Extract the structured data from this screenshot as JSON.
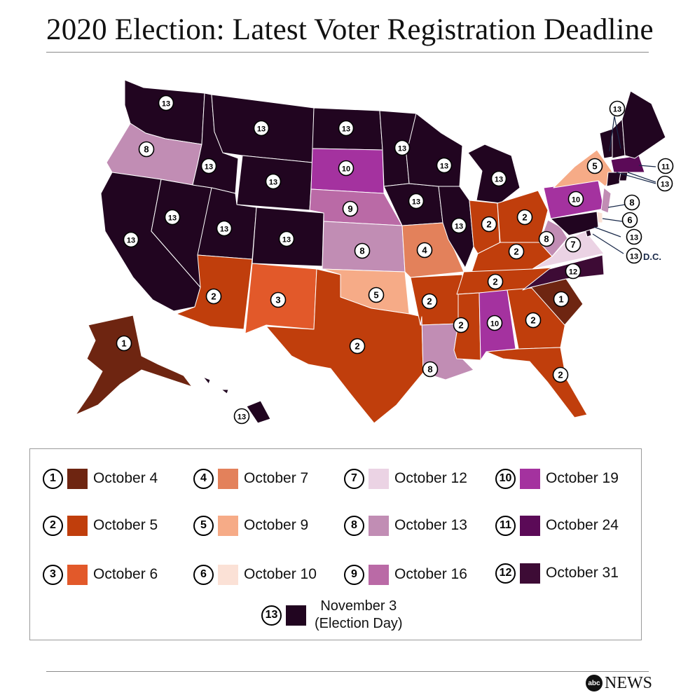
{
  "title": "2020 Election: Latest Voter Registration Deadline",
  "legend": [
    {
      "num": "1",
      "label": "October 4",
      "color": "#6e2511"
    },
    {
      "num": "2",
      "label": "October 5",
      "color": "#c03e0c"
    },
    {
      "num": "3",
      "label": "October 6",
      "color": "#e2592a"
    },
    {
      "num": "4",
      "label": "October 7",
      "color": "#e3815b"
    },
    {
      "num": "5",
      "label": "October 9",
      "color": "#f6ab87"
    },
    {
      "num": "6",
      "label": "October 10",
      "color": "#fbe1d6"
    },
    {
      "num": "7",
      "label": "October 12",
      "color": "#ebd3e4"
    },
    {
      "num": "8",
      "label": "October 13",
      "color": "#c18db4"
    },
    {
      "num": "9",
      "label": "October 16",
      "color": "#ba6aa6"
    },
    {
      "num": "10",
      "label": "October 19",
      "color": "#a4329f"
    },
    {
      "num": "11",
      "label": "October 24",
      "color": "#5b0a57"
    },
    {
      "num": "12",
      "label": "October 31",
      "color": "#3d0b35"
    },
    {
      "num": "13",
      "label_line1": "November 3",
      "label_line2": "(Election Day)",
      "color": "#210520"
    }
  ],
  "dc_label": "D.C.",
  "logo": {
    "mark": "abc",
    "text": "NEWS"
  },
  "states": [
    {
      "id": "WA",
      "num": "13"
    },
    {
      "id": "OR",
      "num": "8"
    },
    {
      "id": "CA",
      "num": "13"
    },
    {
      "id": "NV",
      "num": "13"
    },
    {
      "id": "ID",
      "num": "13"
    },
    {
      "id": "MT",
      "num": "13"
    },
    {
      "id": "WY",
      "num": "13"
    },
    {
      "id": "UT",
      "num": "13"
    },
    {
      "id": "AZ",
      "num": "2"
    },
    {
      "id": "CO",
      "num": "13"
    },
    {
      "id": "NM",
      "num": "3"
    },
    {
      "id": "ND",
      "num": "13"
    },
    {
      "id": "SD",
      "num": "10"
    },
    {
      "id": "NE",
      "num": "9"
    },
    {
      "id": "KS",
      "num": "8"
    },
    {
      "id": "OK",
      "num": "5"
    },
    {
      "id": "TX",
      "num": "2"
    },
    {
      "id": "MN",
      "num": "13"
    },
    {
      "id": "IA",
      "num": "13"
    },
    {
      "id": "MO",
      "num": "4"
    },
    {
      "id": "AR",
      "num": "2"
    },
    {
      "id": "LA",
      "num": "8"
    },
    {
      "id": "WI",
      "num": "13"
    },
    {
      "id": "IL",
      "num": "13"
    },
    {
      "id": "MI",
      "num": "13"
    },
    {
      "id": "IN",
      "num": "2"
    },
    {
      "id": "OH",
      "num": "2"
    },
    {
      "id": "KY",
      "num": "2"
    },
    {
      "id": "TN",
      "num": "2"
    },
    {
      "id": "MS",
      "num": "2"
    },
    {
      "id": "AL",
      "num": "10"
    },
    {
      "id": "GA",
      "num": "2"
    },
    {
      "id": "FL",
      "num": "2"
    },
    {
      "id": "SC",
      "num": "1"
    },
    {
      "id": "NC",
      "num": "12"
    },
    {
      "id": "VA",
      "num": "7"
    },
    {
      "id": "WV",
      "num": "8"
    },
    {
      "id": "PA",
      "num": "10"
    },
    {
      "id": "NY",
      "num": "5"
    },
    {
      "id": "NJ",
      "num": "8"
    },
    {
      "id": "DE",
      "num": "6"
    },
    {
      "id": "MD",
      "num": "13"
    },
    {
      "id": "DC",
      "num": "13"
    },
    {
      "id": "MA",
      "num": "11"
    },
    {
      "id": "CT",
      "num": "13"
    },
    {
      "id": "RI",
      "num": "13"
    },
    {
      "id": "NH",
      "num": "13"
    },
    {
      "id": "VT",
      "num": "13"
    },
    {
      "id": "ME",
      "num": "13"
    },
    {
      "id": "AK",
      "num": "1"
    },
    {
      "id": "HI",
      "num": "13"
    }
  ]
}
